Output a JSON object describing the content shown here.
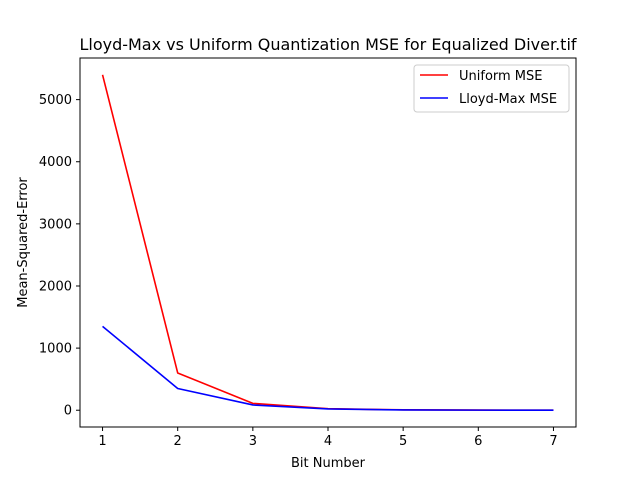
{
  "chart_data": {
    "type": "line",
    "title": "Lloyd-Max vs Uniform Quantization MSE for Equalized Diver.tif",
    "xlabel": "Bit Number",
    "ylabel": "Mean-Squared-Error",
    "x": [
      1,
      2,
      3,
      4,
      5,
      6,
      7
    ],
    "xlim": [
      0.7,
      7.3
    ],
    "ylim": [
      -270,
      5670
    ],
    "xticks": [
      1,
      2,
      3,
      4,
      5,
      6,
      7
    ],
    "yticks": [
      0,
      1000,
      2000,
      3000,
      4000,
      5000
    ],
    "grid": false,
    "legend_position": "upper right",
    "series": [
      {
        "name": "Uniform MSE",
        "color": "#ff0000",
        "values": [
          5400,
          600,
          110,
          25,
          6,
          2,
          0.5
        ]
      },
      {
        "name": "Lloyd-Max MSE",
        "color": "#0000ff",
        "values": [
          1350,
          350,
          85,
          20,
          5,
          1.5,
          0.4
        ]
      }
    ]
  }
}
